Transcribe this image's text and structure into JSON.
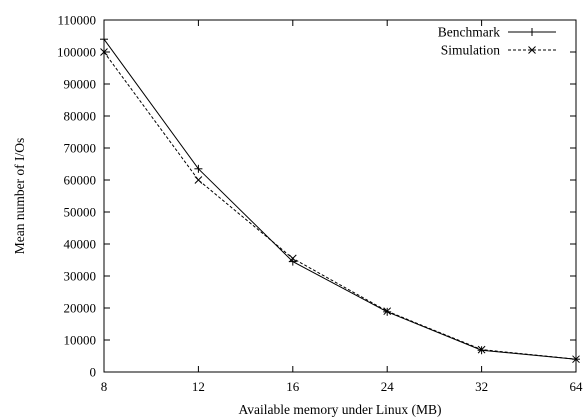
{
  "chart_data": {
    "type": "line",
    "title": "",
    "xlabel": "Available memory under Linux (MB)",
    "ylabel": "Mean number of I/Os",
    "categories": [
      "8",
      "12",
      "16",
      "24",
      "32",
      "64"
    ],
    "ylim": [
      0,
      110000
    ],
    "yticks": [
      0,
      10000,
      20000,
      30000,
      40000,
      50000,
      60000,
      70000,
      80000,
      90000,
      100000,
      110000
    ],
    "grid": false,
    "legend_position": "top-right",
    "series": [
      {
        "name": "Benchmark",
        "line_style": "solid",
        "marker": "plus",
        "values": [
          104000,
          63500,
          34500,
          18800,
          6800,
          4000
        ]
      },
      {
        "name": "Simulation",
        "line_style": "dashed",
        "marker": "cross",
        "values": [
          100000,
          60000,
          35500,
          19000,
          7000,
          4000
        ]
      }
    ]
  }
}
